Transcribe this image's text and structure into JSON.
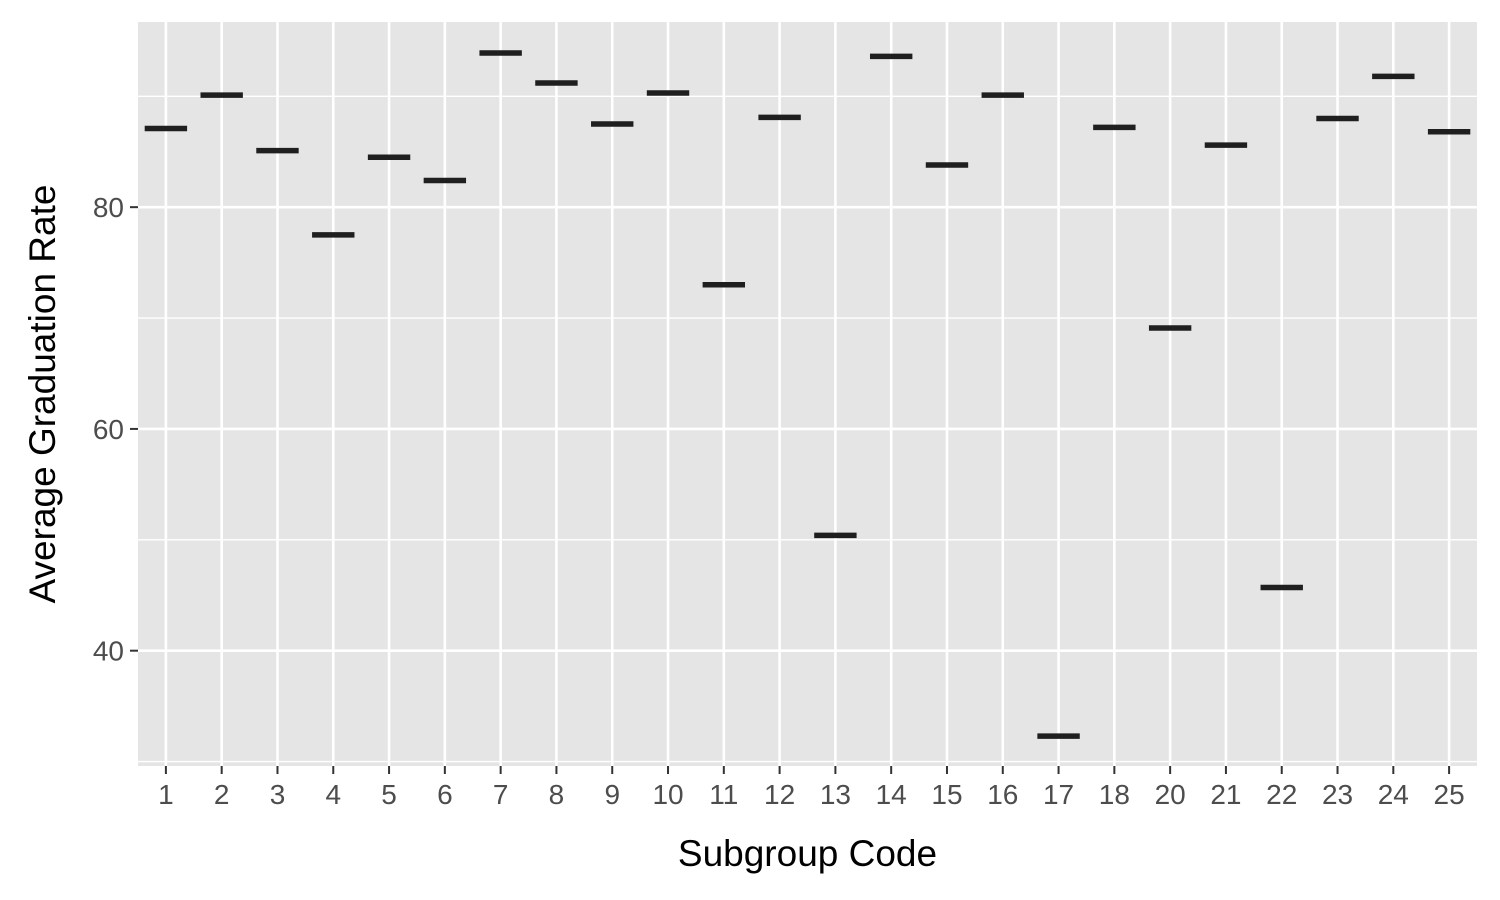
{
  "chart_data": {
    "type": "boxplot",
    "title": "",
    "xlabel": "Subgroup Code",
    "ylabel": "Average Graduation Rate",
    "categories": [
      "1",
      "2",
      "3",
      "4",
      "5",
      "6",
      "7",
      "8",
      "9",
      "10",
      "11",
      "12",
      "13",
      "14",
      "15",
      "16",
      "17",
      "18",
      "20",
      "21",
      "22",
      "23",
      "24",
      "25"
    ],
    "values": [
      87.1,
      90.1,
      85.1,
      77.5,
      84.5,
      82.4,
      93.9,
      91.2,
      87.5,
      90.3,
      73.0,
      88.1,
      50.4,
      93.6,
      83.8,
      90.1,
      32.3,
      87.2,
      69.1,
      85.6,
      45.7,
      88.0,
      91.8,
      86.8
    ],
    "ylim": [
      29.6,
      96.7
    ],
    "yticks": [
      40,
      60,
      80
    ],
    "grid": true,
    "legend": "none",
    "colors": {
      "panel_background": "#e5e5e5",
      "grid": "#ffffff",
      "mark": "#1f1f1f",
      "tick_text": "#4d4d4d"
    }
  }
}
